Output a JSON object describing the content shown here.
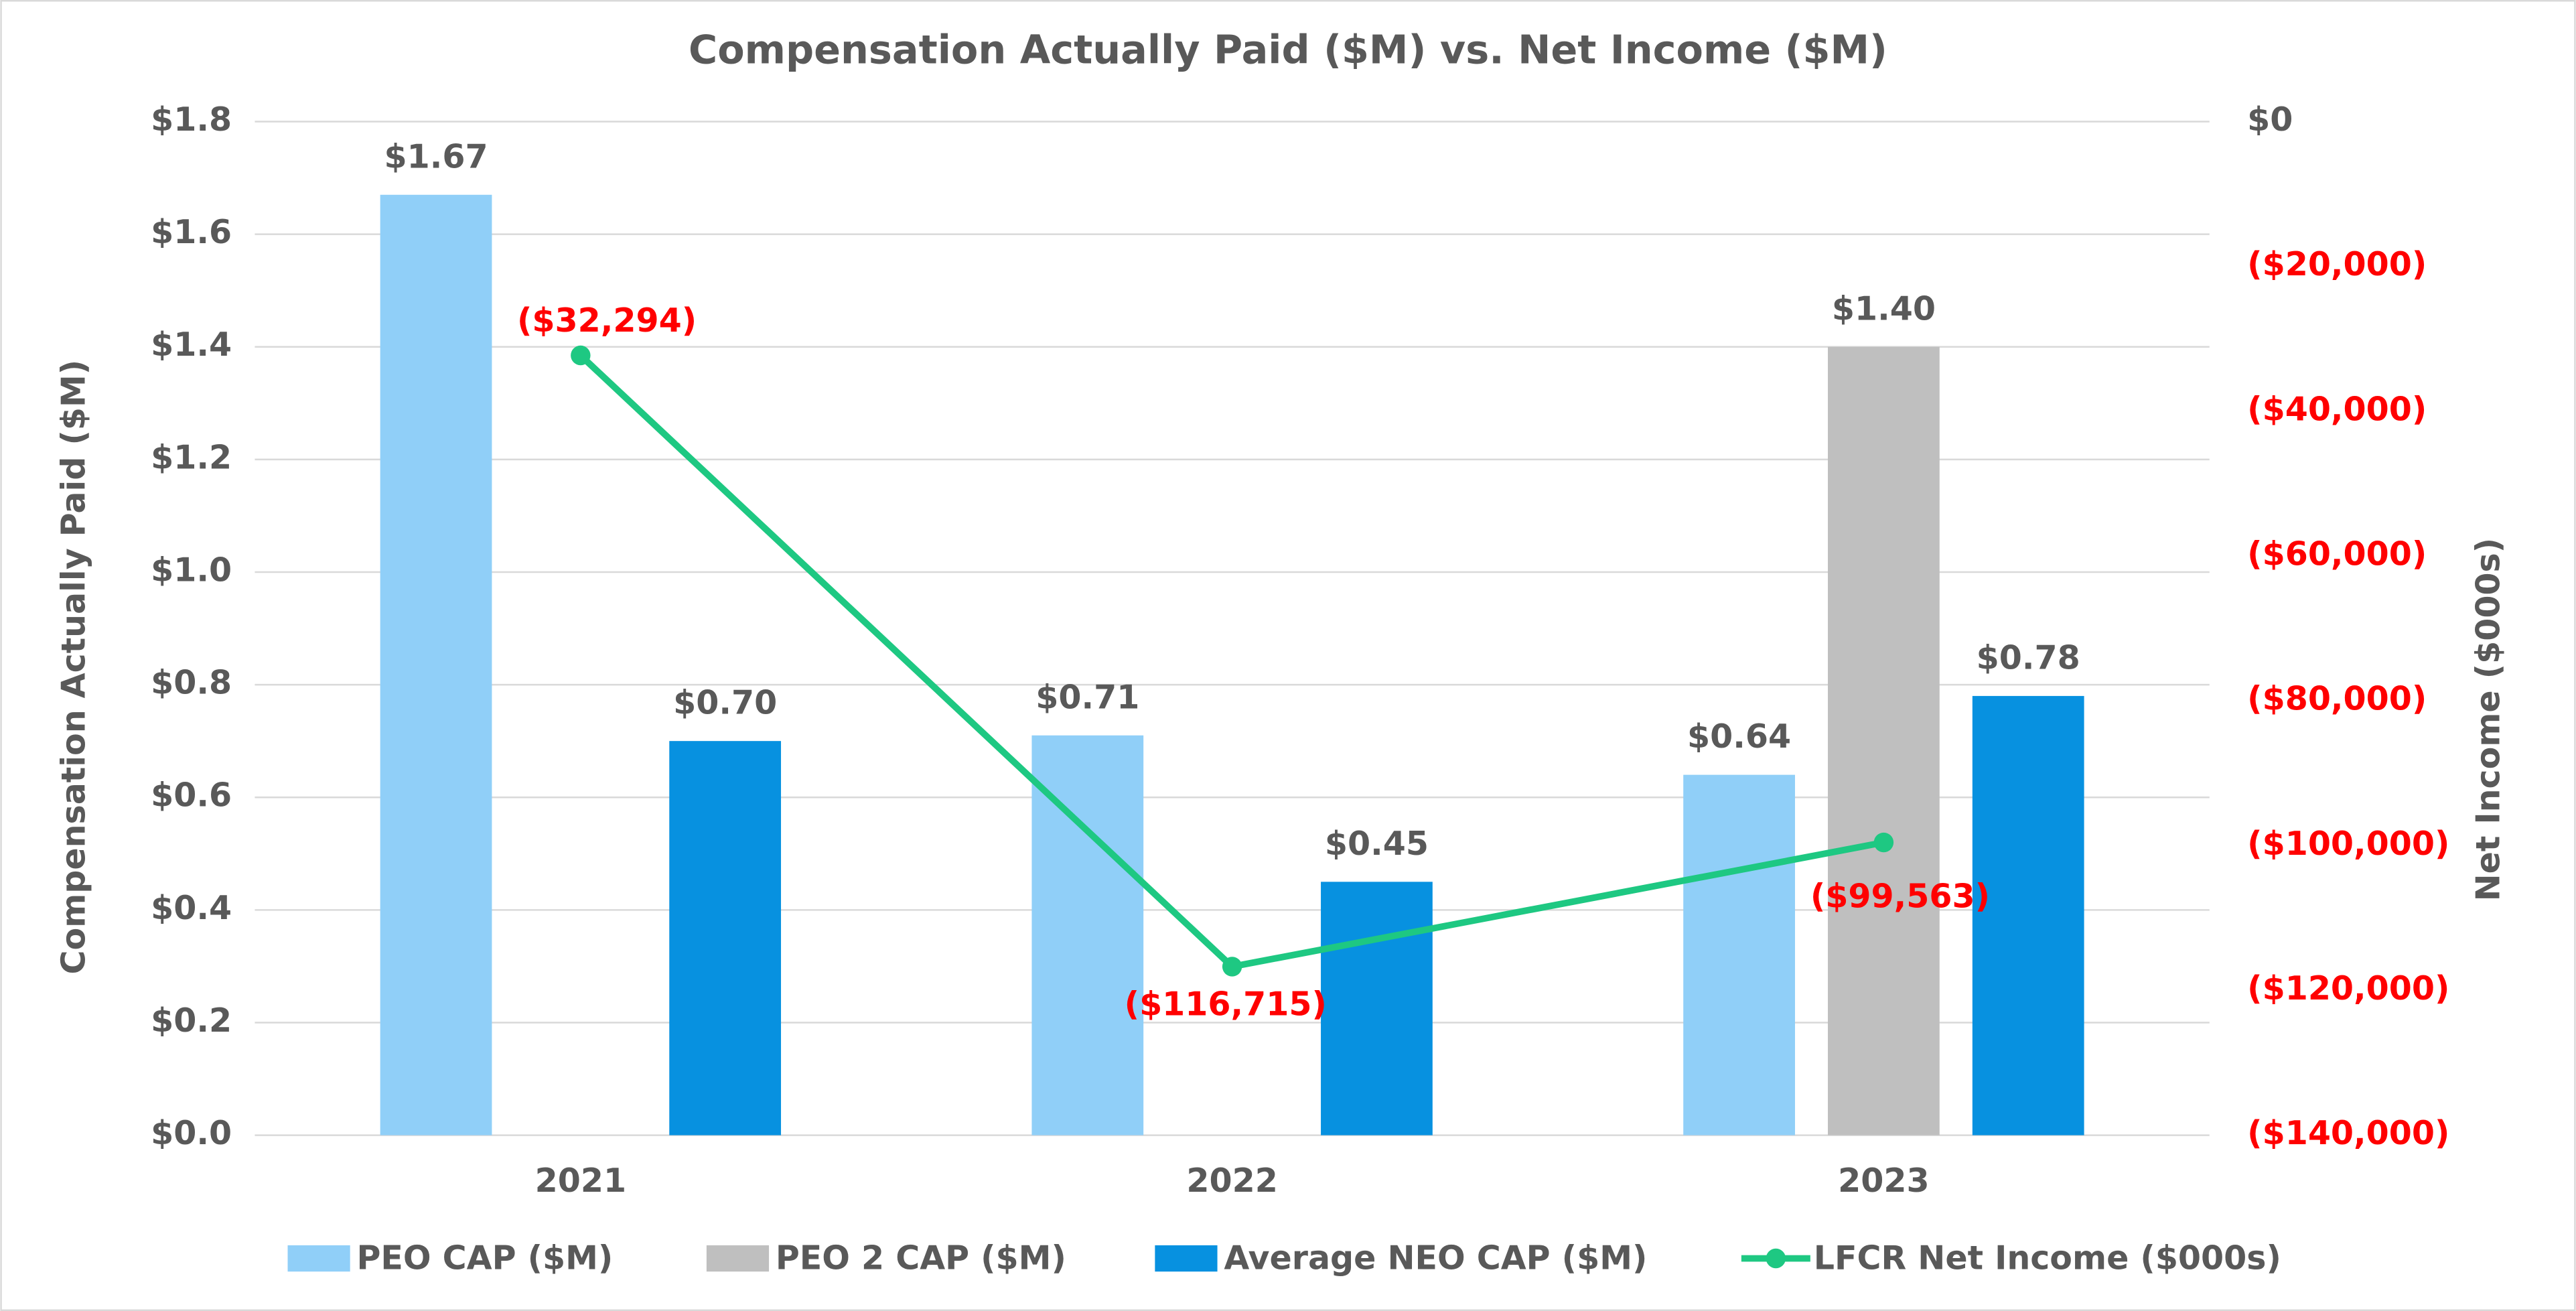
{
  "chart_data": {
    "type": "bar",
    "title": "Compensation Actually Paid ($M) vs. Net Income ($M)",
    "y_label": "Compensation Actually Paid ($M)",
    "y2_label": "Net Income ($000s)",
    "categories": [
      "2021",
      "2022",
      "2023"
    ],
    "series": [
      {
        "name": "PEO CAP ($M)",
        "color": "#90cff8",
        "values": [
          1.67,
          0.71,
          0.64
        ],
        "value_labels": [
          "$1.67",
          "$0.71",
          "$0.64"
        ]
      },
      {
        "name": "PEO 2 CAP ($M)",
        "color": "#bfbfbf",
        "values": [
          null,
          null,
          1.4
        ],
        "value_labels": [
          null,
          null,
          "$1.40"
        ]
      },
      {
        "name": "Average NEO CAP ($M)",
        "color": "#0791e0",
        "values": [
          0.7,
          0.45,
          0.78
        ],
        "value_labels": [
          "$0.70",
          "$0.45",
          "$0.78"
        ]
      },
      {
        "name": "LFCR Net Income ($000s)",
        "type": "line",
        "axis": "y2",
        "color": "#1ec882",
        "values": [
          -32294,
          -116715,
          -99563
        ],
        "value_labels": [
          "($32,294)",
          "($116,715)",
          "($99,563)"
        ]
      }
    ],
    "ylim": [
      0,
      1.8
    ],
    "yticks": [
      {
        "value": 0,
        "label": "$0.0"
      },
      {
        "value": 0.2,
        "label": "$0.2"
      },
      {
        "value": 0.4,
        "label": "$0.4"
      },
      {
        "value": 0.6,
        "label": "$0.6"
      },
      {
        "value": 0.8,
        "label": "$0.8"
      },
      {
        "value": 1.0,
        "label": "$1.0"
      },
      {
        "value": 1.2,
        "label": "$1.2"
      },
      {
        "value": 1.4,
        "label": "$1.4"
      },
      {
        "value": 1.6,
        "label": "$1.6"
      },
      {
        "value": 1.8,
        "label": "$1.8"
      }
    ],
    "y2lim": [
      -140000,
      0
    ],
    "y2ticks": [
      {
        "value": 0,
        "label": "$0"
      },
      {
        "value": -20000,
        "label": "($20,000)"
      },
      {
        "value": -40000,
        "label": "($40,000)"
      },
      {
        "value": -60000,
        "label": "($60,000)"
      },
      {
        "value": -80000,
        "label": "($80,000)"
      },
      {
        "value": -100000,
        "label": "($100,000)"
      },
      {
        "value": -120000,
        "label": "($120,000)"
      },
      {
        "value": -140000,
        "label": "($140,000)"
      }
    ],
    "grid": true
  }
}
